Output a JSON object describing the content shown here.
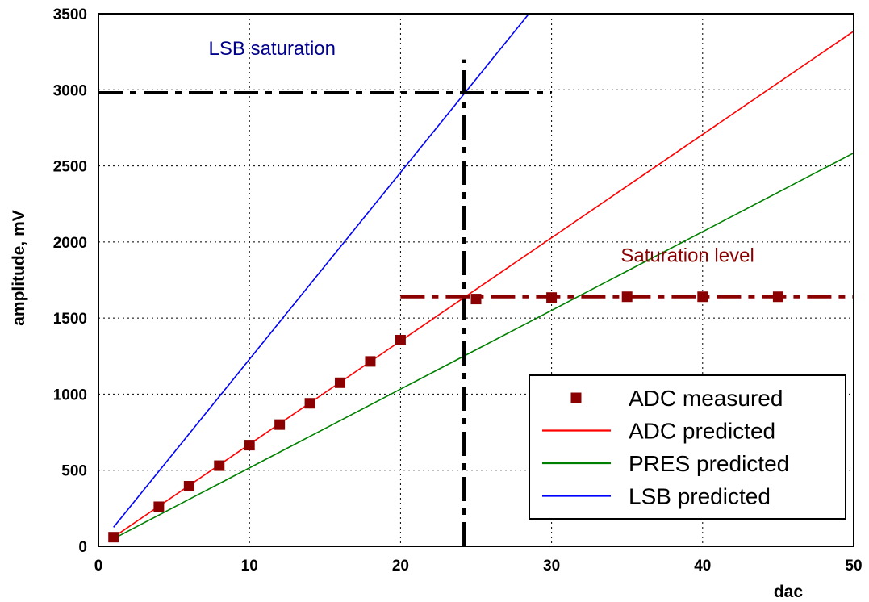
{
  "chart_data": {
    "type": "scatter",
    "xlabel": "dac",
    "ylabel": "amplitude, mV",
    "xlim": [
      0,
      50
    ],
    "ylim": [
      0,
      3500
    ],
    "x_ticks": [
      "0",
      "10",
      "20",
      "30",
      "40",
      "50"
    ],
    "y_ticks": [
      "0",
      "500",
      "1000",
      "1500",
      "2000",
      "2500",
      "3000",
      "3500"
    ],
    "grid": true,
    "legend_position": "bottom-right",
    "series": [
      {
        "name": "ADC measured",
        "kind": "markers",
        "color": "#8b0000",
        "x": [
          1,
          4,
          6,
          8,
          10,
          12,
          14,
          16,
          18,
          20,
          25,
          30,
          35,
          40,
          45
        ],
        "y": [
          60,
          260,
          395,
          530,
          665,
          800,
          940,
          1075,
          1215,
          1355,
          1625,
          1635,
          1640,
          1640,
          1640
        ]
      },
      {
        "name": "ADC predicted",
        "kind": "line",
        "color": "#ff0000",
        "x": [
          1,
          50
        ],
        "y": [
          60,
          3385
        ]
      },
      {
        "name": "PRES predicted",
        "kind": "line",
        "color": "#008000",
        "x": [
          1,
          50
        ],
        "y": [
          50,
          2585
        ]
      },
      {
        "name": "LSB predicted",
        "kind": "line",
        "color": "#0000ff",
        "x": [
          1,
          28.5
        ],
        "y": [
          125,
          3500
        ]
      }
    ],
    "annotations": [
      {
        "text": "LSB saturation",
        "color": "#00008b",
        "at": [
          11.5,
          3230
        ]
      },
      {
        "text": "Saturation level",
        "color": "#8b0000",
        "at": [
          39,
          1870
        ]
      }
    ],
    "reference_lines": [
      {
        "orientation": "horizontal",
        "value": 2980,
        "x_range": [
          0,
          30
        ],
        "color": "#000000"
      },
      {
        "orientation": "vertical",
        "value": 24.2,
        "y_range": [
          0,
          3200
        ],
        "color": "#000000"
      },
      {
        "orientation": "horizontal",
        "value": 1640,
        "x_range": [
          20,
          50
        ],
        "color": "#8b0000"
      }
    ]
  }
}
